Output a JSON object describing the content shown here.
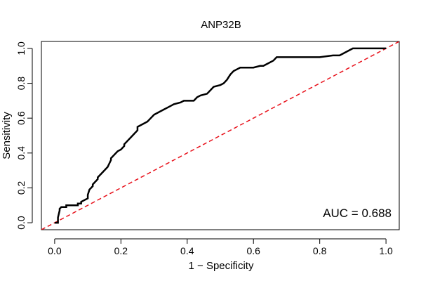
{
  "chart_data": {
    "type": "line",
    "title": "ANP32B",
    "xlabel": "1 − Specificity",
    "ylabel": "Sensitivity",
    "xlim": [
      -0.04,
      1.04
    ],
    "ylim": [
      -0.04,
      1.04
    ],
    "xticks": [
      0.0,
      0.2,
      0.4,
      0.6,
      0.8,
      1.0
    ],
    "xtick_labels": [
      "0.0",
      "0.2",
      "0.4",
      "0.6",
      "0.8",
      "1.0"
    ],
    "yticks": [
      0.0,
      0.2,
      0.4,
      0.6,
      0.8,
      1.0
    ],
    "ytick_labels": [
      "0.0",
      "0.2",
      "0.4",
      "0.6",
      "0.8",
      "1.0"
    ],
    "annotation": "AUC = 0.688",
    "grid": false,
    "series": [
      {
        "kind": "roc-curve",
        "color": "#000000",
        "x": [
          0.0,
          0.01,
          0.01,
          0.015,
          0.015,
          0.02,
          0.02,
          0.035,
          0.035,
          0.07,
          0.07,
          0.08,
          0.08,
          0.09,
          0.1,
          0.1,
          0.105,
          0.115,
          0.115,
          0.12,
          0.13,
          0.13,
          0.14,
          0.15,
          0.16,
          0.17,
          0.17,
          0.18,
          0.19,
          0.2,
          0.21,
          0.21,
          0.22,
          0.23,
          0.24,
          0.25,
          0.25,
          0.26,
          0.27,
          0.28,
          0.29,
          0.3,
          0.32,
          0.33,
          0.34,
          0.35,
          0.36,
          0.38,
          0.39,
          0.4,
          0.42,
          0.43,
          0.44,
          0.46,
          0.48,
          0.5,
          0.51,
          0.52,
          0.53,
          0.54,
          0.55,
          0.56,
          0.58,
          0.6,
          0.62,
          0.63,
          0.64,
          0.66,
          0.67,
          0.7,
          0.76,
          0.8,
          0.84,
          0.86,
          0.87,
          0.88,
          0.89,
          0.9,
          0.95,
          1.0
        ],
        "y": [
          0.0,
          0.0,
          0.03,
          0.07,
          0.08,
          0.09,
          0.09,
          0.09,
          0.1,
          0.1,
          0.11,
          0.11,
          0.12,
          0.13,
          0.14,
          0.16,
          0.19,
          0.21,
          0.22,
          0.23,
          0.25,
          0.26,
          0.28,
          0.3,
          0.32,
          0.36,
          0.37,
          0.39,
          0.41,
          0.42,
          0.44,
          0.45,
          0.47,
          0.49,
          0.51,
          0.53,
          0.55,
          0.56,
          0.57,
          0.58,
          0.6,
          0.62,
          0.64,
          0.65,
          0.66,
          0.67,
          0.68,
          0.69,
          0.7,
          0.7,
          0.7,
          0.72,
          0.73,
          0.74,
          0.78,
          0.79,
          0.8,
          0.82,
          0.85,
          0.87,
          0.88,
          0.89,
          0.89,
          0.89,
          0.9,
          0.9,
          0.91,
          0.93,
          0.95,
          0.95,
          0.95,
          0.95,
          0.96,
          0.96,
          0.97,
          0.98,
          0.99,
          1.0,
          1.0,
          1.0
        ]
      },
      {
        "kind": "reference-diagonal",
        "color": "#e8101a",
        "style": "dashed",
        "x": [
          0.0,
          1.0
        ],
        "y": [
          0.0,
          1.0
        ]
      }
    ]
  }
}
